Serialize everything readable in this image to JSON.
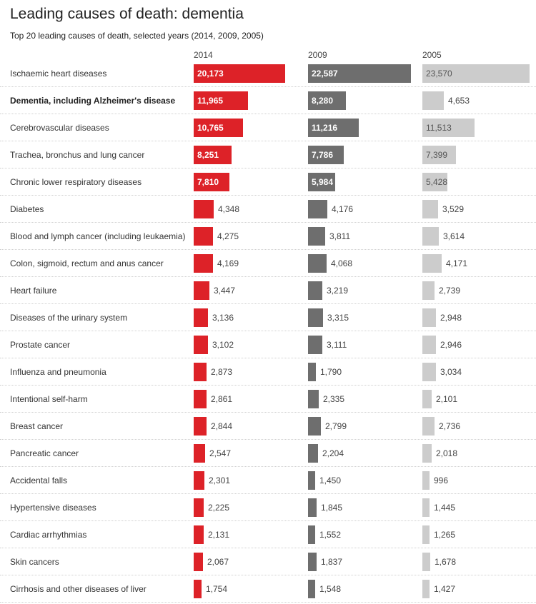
{
  "title": "Leading causes of death: dementia",
  "subtitle": "Top 20 leading causes of death, selected years (2014, 2009, 2005)",
  "colors": {
    "2014": "#dd2228",
    "2009": "#6e6e6e",
    "2005": "#cccccc"
  },
  "chart_data": {
    "type": "bar",
    "orientation": "horizontal",
    "title": "Leading causes of death: dementia",
    "subtitle": "Top 20 leading causes of death, selected years (2014, 2009, 2005)",
    "categories": [
      "Ischaemic heart diseases",
      "Dementia, including Alzheimer's disease",
      "Cerebrovascular diseases",
      "Trachea, bronchus and lung cancer",
      "Chronic lower respiratory diseases",
      "Diabetes",
      "Blood and lymph cancer (including leukaemia)",
      "Colon, sigmoid, rectum and anus cancer",
      "Heart failure",
      "Diseases of the urinary system",
      "Prostate cancer",
      "Influenza and pneumonia",
      "Intentional self-harm",
      "Breast cancer",
      "Pancreatic cancer",
      "Accidental falls",
      "Hypertensive diseases",
      "Cardiac arrhythmias",
      "Skin cancers",
      "Cirrhosis and other diseases of liver"
    ],
    "highlight": "Dementia, including Alzheimer's disease",
    "series": [
      {
        "name": "2014",
        "values": [
          20173,
          11965,
          10765,
          8251,
          7810,
          4348,
          4275,
          4169,
          3447,
          3136,
          3102,
          2873,
          2861,
          2844,
          2547,
          2301,
          2225,
          2131,
          2067,
          1754
        ]
      },
      {
        "name": "2009",
        "values": [
          22587,
          8280,
          11216,
          7786,
          5984,
          4176,
          3811,
          4068,
          3219,
          3315,
          3111,
          1790,
          2335,
          2799,
          2204,
          1450,
          1845,
          1552,
          1837,
          1548
        ]
      },
      {
        "name": "2005",
        "values": [
          23570,
          4653,
          11513,
          7399,
          5428,
          3529,
          3614,
          4171,
          2739,
          2948,
          2946,
          3034,
          2101,
          2736,
          2018,
          996,
          1445,
          1265,
          1678,
          1427
        ]
      }
    ]
  }
}
